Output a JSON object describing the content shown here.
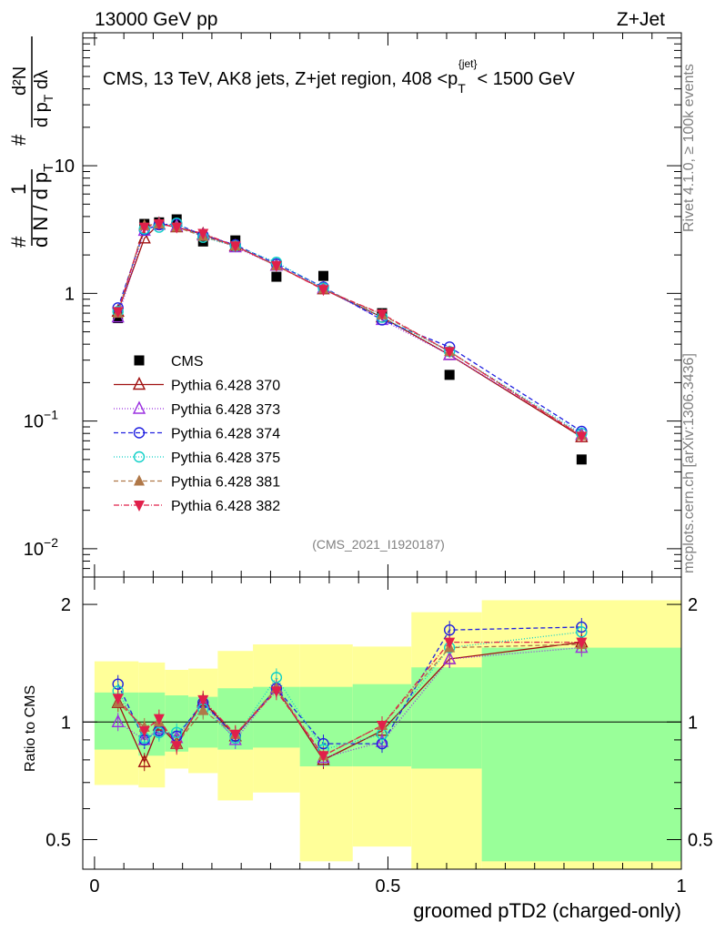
{
  "header": {
    "left": "13000 GeV pp",
    "right": "Z+Jet"
  },
  "side": {
    "rivet": "Rivet 4.1.0, ≥ 100k events",
    "mcplots": "mcplots.cern.ch [arXiv:1306.3436]"
  },
  "colors": {
    "cms": "#000000",
    "p370": "#a01010",
    "p373": "#9b30e0",
    "p374": "#2020e0",
    "p375": "#10d0c8",
    "p381": "#b07848",
    "p382": "#e0204a",
    "band_green": "#99ff99",
    "band_yellow": "#ffff99"
  },
  "chart_data": [
    {
      "type": "line",
      "title": "CMS, 13 TeV, AK8 jets, Z+jet region, 408 <p_T^{jet}< 1500 GeV",
      "title_parts": {
        "main": "CMS, 13 TeV, AK8 jets, Z+jet region, 408 <p",
        "sub": "T",
        "sup": "{jet}",
        "end": "< 1500 GeV"
      },
      "ylabel_parts": {
        "frac_l": "1",
        "den_l": "d N / d p",
        "den_l_sub": "T",
        "num_r": "d²N",
        "den_r": "d p",
        "den_r_sub": "T",
        "den_r_end": " dλ",
        "hash": "#"
      },
      "yscale": "log",
      "ylim": [
        0.006,
        110
      ],
      "xlim": [
        -0.02,
        1.0
      ],
      "yticks": [
        {
          "v": 10,
          "label": "10"
        },
        {
          "v": 1,
          "label": "1"
        },
        {
          "v": 0.1,
          "label": "10",
          "exp": "−1"
        },
        {
          "v": 0.01,
          "label": "10",
          "exp": "−2"
        }
      ],
      "watermark": "(CMS_2021_I1920187)",
      "x": [
        0.04,
        0.085,
        0.11,
        0.14,
        0.185,
        0.24,
        0.31,
        0.39,
        0.49,
        0.605,
        0.83
      ],
      "series": [
        {
          "name": "CMS",
          "key": "cms",
          "marker": "square",
          "dash": "",
          "values": [
            0.64,
            3.5,
            3.6,
            3.8,
            2.55,
            2.6,
            1.35,
            1.37,
            0.7,
            0.23,
            0.05
          ]
        },
        {
          "name": "Pythia 6.428 370",
          "key": "p370",
          "marker": "tri-up-open",
          "dash": "",
          "values": [
            0.72,
            2.7,
            3.5,
            3.3,
            2.9,
            2.35,
            1.65,
            1.08,
            0.65,
            0.33,
            0.075
          ]
        },
        {
          "name": "Pythia 6.428 373",
          "key": "p373",
          "marker": "tri-up-open",
          "dash": "1,2",
          "values": [
            0.65,
            3.1,
            3.45,
            3.35,
            2.85,
            2.3,
            1.65,
            1.1,
            0.62,
            0.33,
            0.078
          ]
        },
        {
          "name": "Pythia 6.428 374",
          "key": "p374",
          "marker": "circle-open",
          "dash": "5,3",
          "values": [
            0.77,
            3.15,
            3.45,
            3.5,
            2.85,
            2.4,
            1.7,
            1.12,
            0.62,
            0.38,
            0.083
          ]
        },
        {
          "name": "Pythia 6.428 375",
          "key": "p375",
          "marker": "circle-open",
          "dash": "1,2",
          "values": [
            0.72,
            3.2,
            3.3,
            3.55,
            2.75,
            2.35,
            1.75,
            1.1,
            0.65,
            0.35,
            0.08
          ]
        },
        {
          "name": "Pythia 6.428 381",
          "key": "p381",
          "marker": "tri-up-fill",
          "dash": "5,3",
          "values": [
            0.7,
            3.4,
            3.5,
            3.3,
            2.8,
            2.35,
            1.65,
            1.08,
            0.68,
            0.35,
            0.077
          ]
        },
        {
          "name": "Pythia 6.428 382",
          "key": "p382",
          "marker": "tri-down-fill",
          "dash": "6,2,1,2",
          "values": [
            0.72,
            3.3,
            3.5,
            3.3,
            2.95,
            2.35,
            1.65,
            1.07,
            0.69,
            0.35,
            0.076
          ]
        }
      ]
    },
    {
      "type": "line",
      "ylabel": "Ratio to CMS",
      "xlabel": "groomed pTD2 (charged-only)",
      "yscale": "log",
      "ylim": [
        0.42,
        2.35
      ],
      "xlim": [
        -0.02,
        1.0
      ],
      "xticks": [
        {
          "v": 0,
          "label": "0"
        },
        {
          "v": 0.5,
          "label": "0.5"
        },
        {
          "v": 1,
          "label": "1"
        }
      ],
      "yticks": [
        {
          "v": 2,
          "label": "2"
        },
        {
          "v": 1,
          "label": "1"
        },
        {
          "v": 0.5,
          "label": "0.5"
        }
      ],
      "bands": {
        "edges": [
          0.0,
          0.075,
          0.12,
          0.16,
          0.21,
          0.27,
          0.35,
          0.44,
          0.54,
          0.66,
          1.0
        ],
        "green_lo": [
          0.85,
          0.82,
          0.84,
          0.86,
          0.85,
          0.86,
          0.77,
          0.77,
          0.76,
          0.44,
          0.44
        ],
        "green_hi": [
          1.19,
          1.19,
          1.17,
          1.16,
          1.22,
          1.23,
          1.23,
          1.25,
          1.38,
          1.55,
          1.55
        ],
        "yellow_lo": [
          0.69,
          0.68,
          0.76,
          0.74,
          0.63,
          0.66,
          0.44,
          0.48,
          0.34,
          0.34,
          0.34
        ],
        "yellow_hi": [
          1.43,
          1.42,
          1.36,
          1.37,
          1.52,
          1.58,
          1.58,
          1.56,
          1.91,
          2.05,
          2.05
        ]
      },
      "series": [
        {
          "key": "p370",
          "marker": "tri-up-open",
          "dash": "",
          "values": [
            1.12,
            0.79,
            0.98,
            0.88,
            1.13,
            0.92,
            1.22,
            0.8,
            0.95,
            1.45,
            1.6
          ]
        },
        {
          "key": "p373",
          "marker": "tri-up-open",
          "dash": "1,2",
          "values": [
            1.0,
            0.9,
            0.96,
            0.91,
            1.12,
            0.9,
            1.22,
            0.81,
            0.89,
            1.45,
            1.55
          ]
        },
        {
          "key": "p374",
          "marker": "circle-open",
          "dash": "5,3",
          "values": [
            1.25,
            0.9,
            0.95,
            0.92,
            1.12,
            0.92,
            1.22,
            0.88,
            0.88,
            1.72,
            1.75
          ]
        },
        {
          "key": "p375",
          "marker": "circle-open",
          "dash": "1,2",
          "values": [
            1.2,
            0.91,
            0.94,
            0.94,
            1.08,
            0.91,
            1.3,
            0.85,
            0.93,
            1.55,
            1.7
          ]
        },
        {
          "key": "p381",
          "marker": "tri-up-fill",
          "dash": "5,3",
          "values": [
            1.12,
            0.97,
            1.0,
            0.88,
            1.07,
            0.93,
            1.22,
            0.82,
            0.98,
            1.55,
            1.58
          ]
        },
        {
          "key": "p382",
          "marker": "tri-down-fill",
          "dash": "6,2,1,2",
          "values": [
            1.15,
            0.95,
            1.02,
            0.87,
            1.14,
            0.93,
            1.2,
            0.82,
            0.98,
            1.6,
            1.6
          ]
        }
      ]
    }
  ]
}
